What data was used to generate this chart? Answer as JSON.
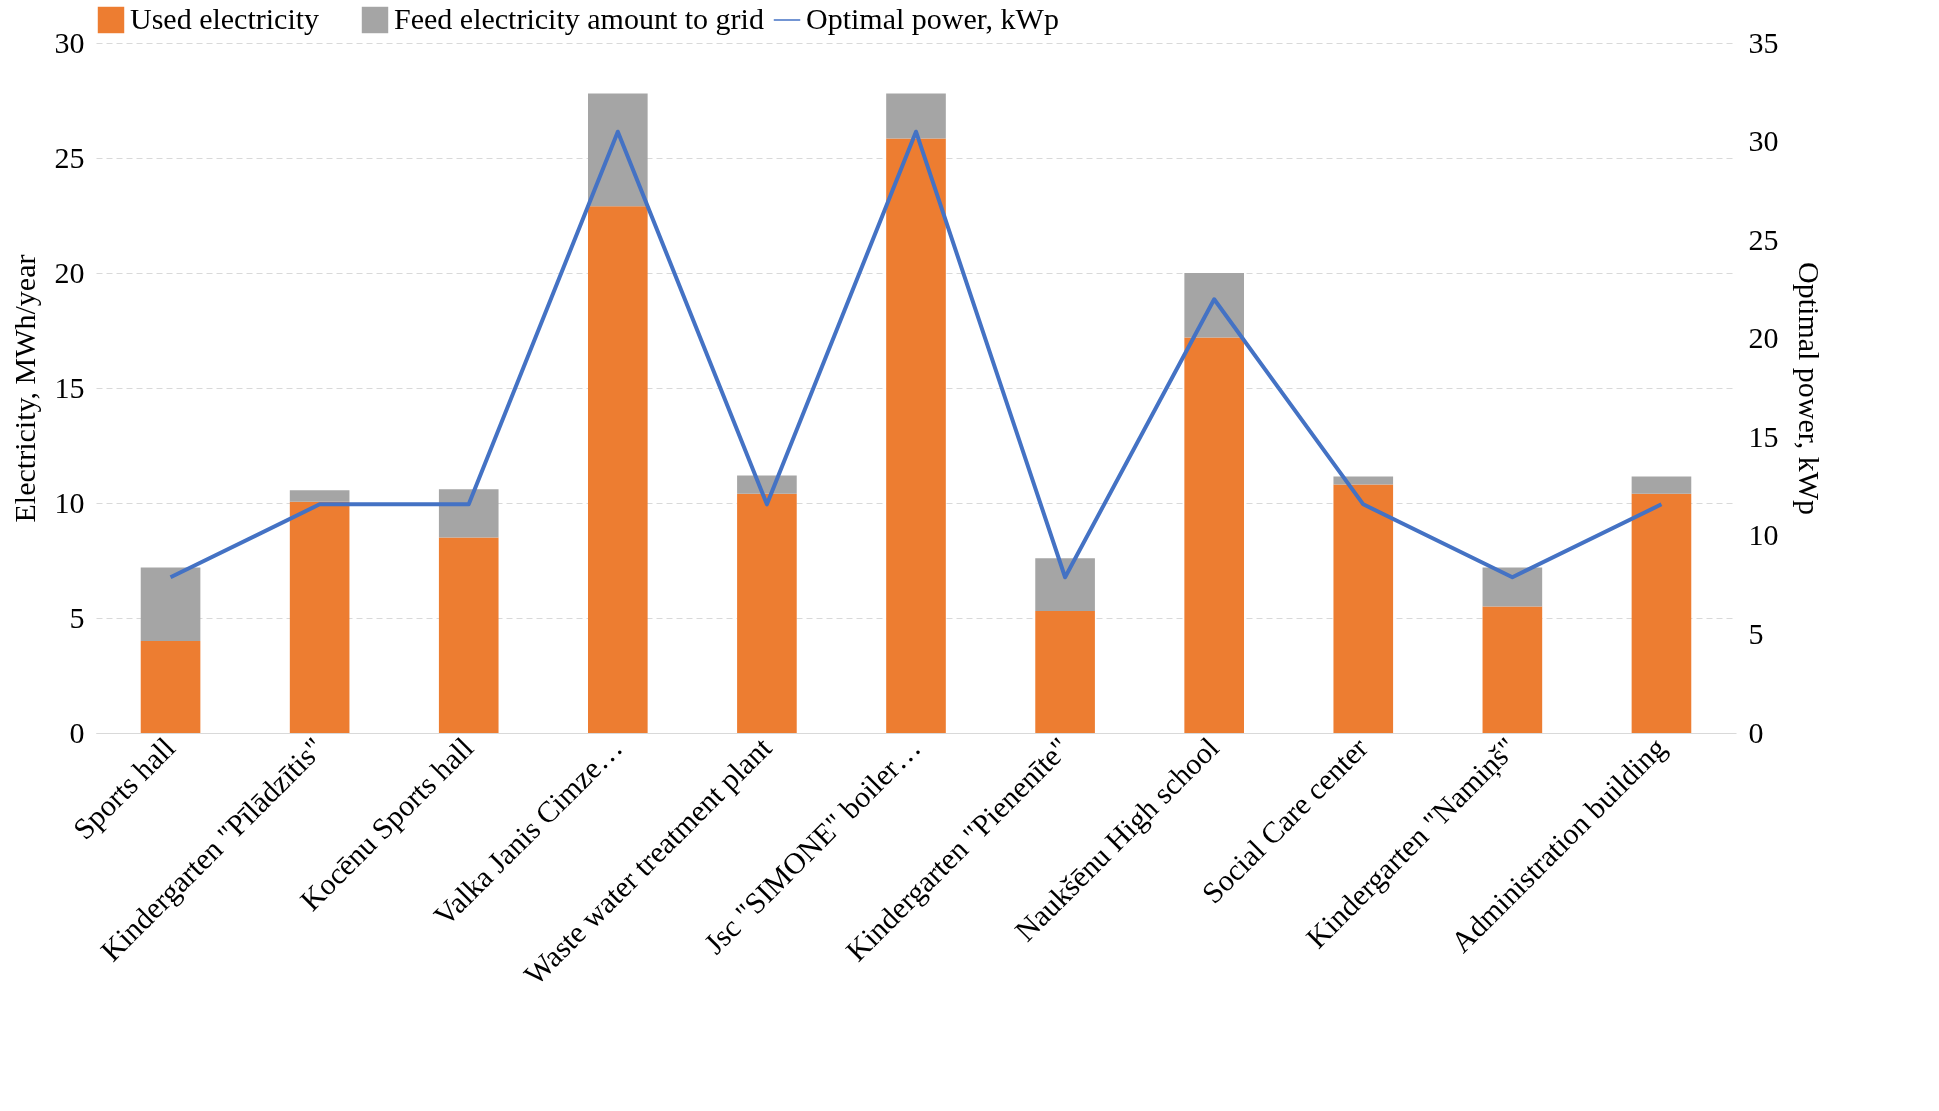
{
  "chart_data": {
    "type": "bar",
    "stacked": true,
    "categories": [
      "Sports hall",
      "Kindergarten \"Pīlādzītis\"",
      "Kocēnu Sports hall",
      "Valka Janis Cimze…",
      "Waste water treatment plant",
      "Jsc \"SIMONE\" boiler…",
      "Kindergarten \"Pienenīte\"",
      "Naukšēnu High school",
      "Social Care center",
      "Kindergarten \"Namiņš\"",
      "Administration building"
    ],
    "ylabel": "Electricity, MWh/year",
    "y2label": "Optimal power, kWp",
    "ylim": [
      0,
      30
    ],
    "yticks": [
      0,
      5,
      10,
      15,
      20,
      25,
      30
    ],
    "y2lim": [
      0,
      35
    ],
    "y2ticks": [
      0,
      5,
      10,
      15,
      20,
      25,
      30,
      35
    ],
    "grid": "y",
    "legend": "top",
    "series": [
      {
        "name": "Used electricity",
        "color": "#ed7d31",
        "values": [
          4.0,
          10.05,
          8.5,
          22.9,
          10.4,
          25.85,
          5.3,
          17.2,
          10.8,
          5.5,
          10.4
        ]
      },
      {
        "name": "Feed electricity amount to grid",
        "color": "#a5a5a5",
        "values": [
          3.2,
          0.5,
          2.1,
          4.9,
          0.8,
          1.95,
          2.3,
          2.8,
          0.35,
          1.7,
          0.75
        ]
      },
      {
        "name": "Optimal power, kWp",
        "type": "line",
        "axis": "y2",
        "color": "#4472c4",
        "values": [
          7.9,
          11.6,
          11.6,
          30.5,
          11.6,
          30.5,
          7.9,
          22.0,
          11.6,
          7.9,
          11.6
        ]
      }
    ]
  }
}
